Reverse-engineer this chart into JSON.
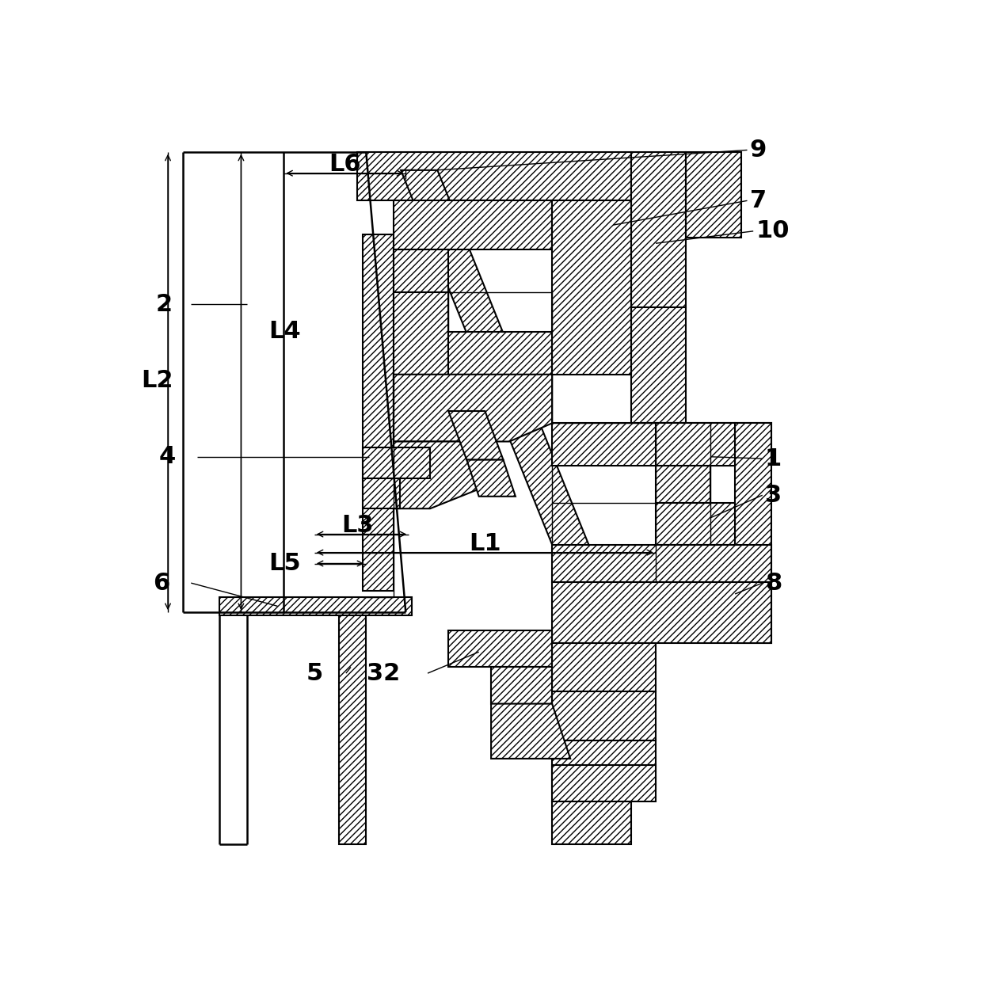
{
  "bg_color": "#ffffff",
  "line_color": "#000000",
  "lw": 1.8,
  "tlw": 1.0,
  "fs": 22,
  "hatch": "////",
  "components": {
    "labels": [
      "1",
      "2",
      "3",
      "4",
      "5",
      "6",
      "7",
      "8",
      "9",
      "10",
      "32",
      "L1",
      "L2",
      "L3",
      "L4",
      "L5",
      "L6"
    ]
  }
}
